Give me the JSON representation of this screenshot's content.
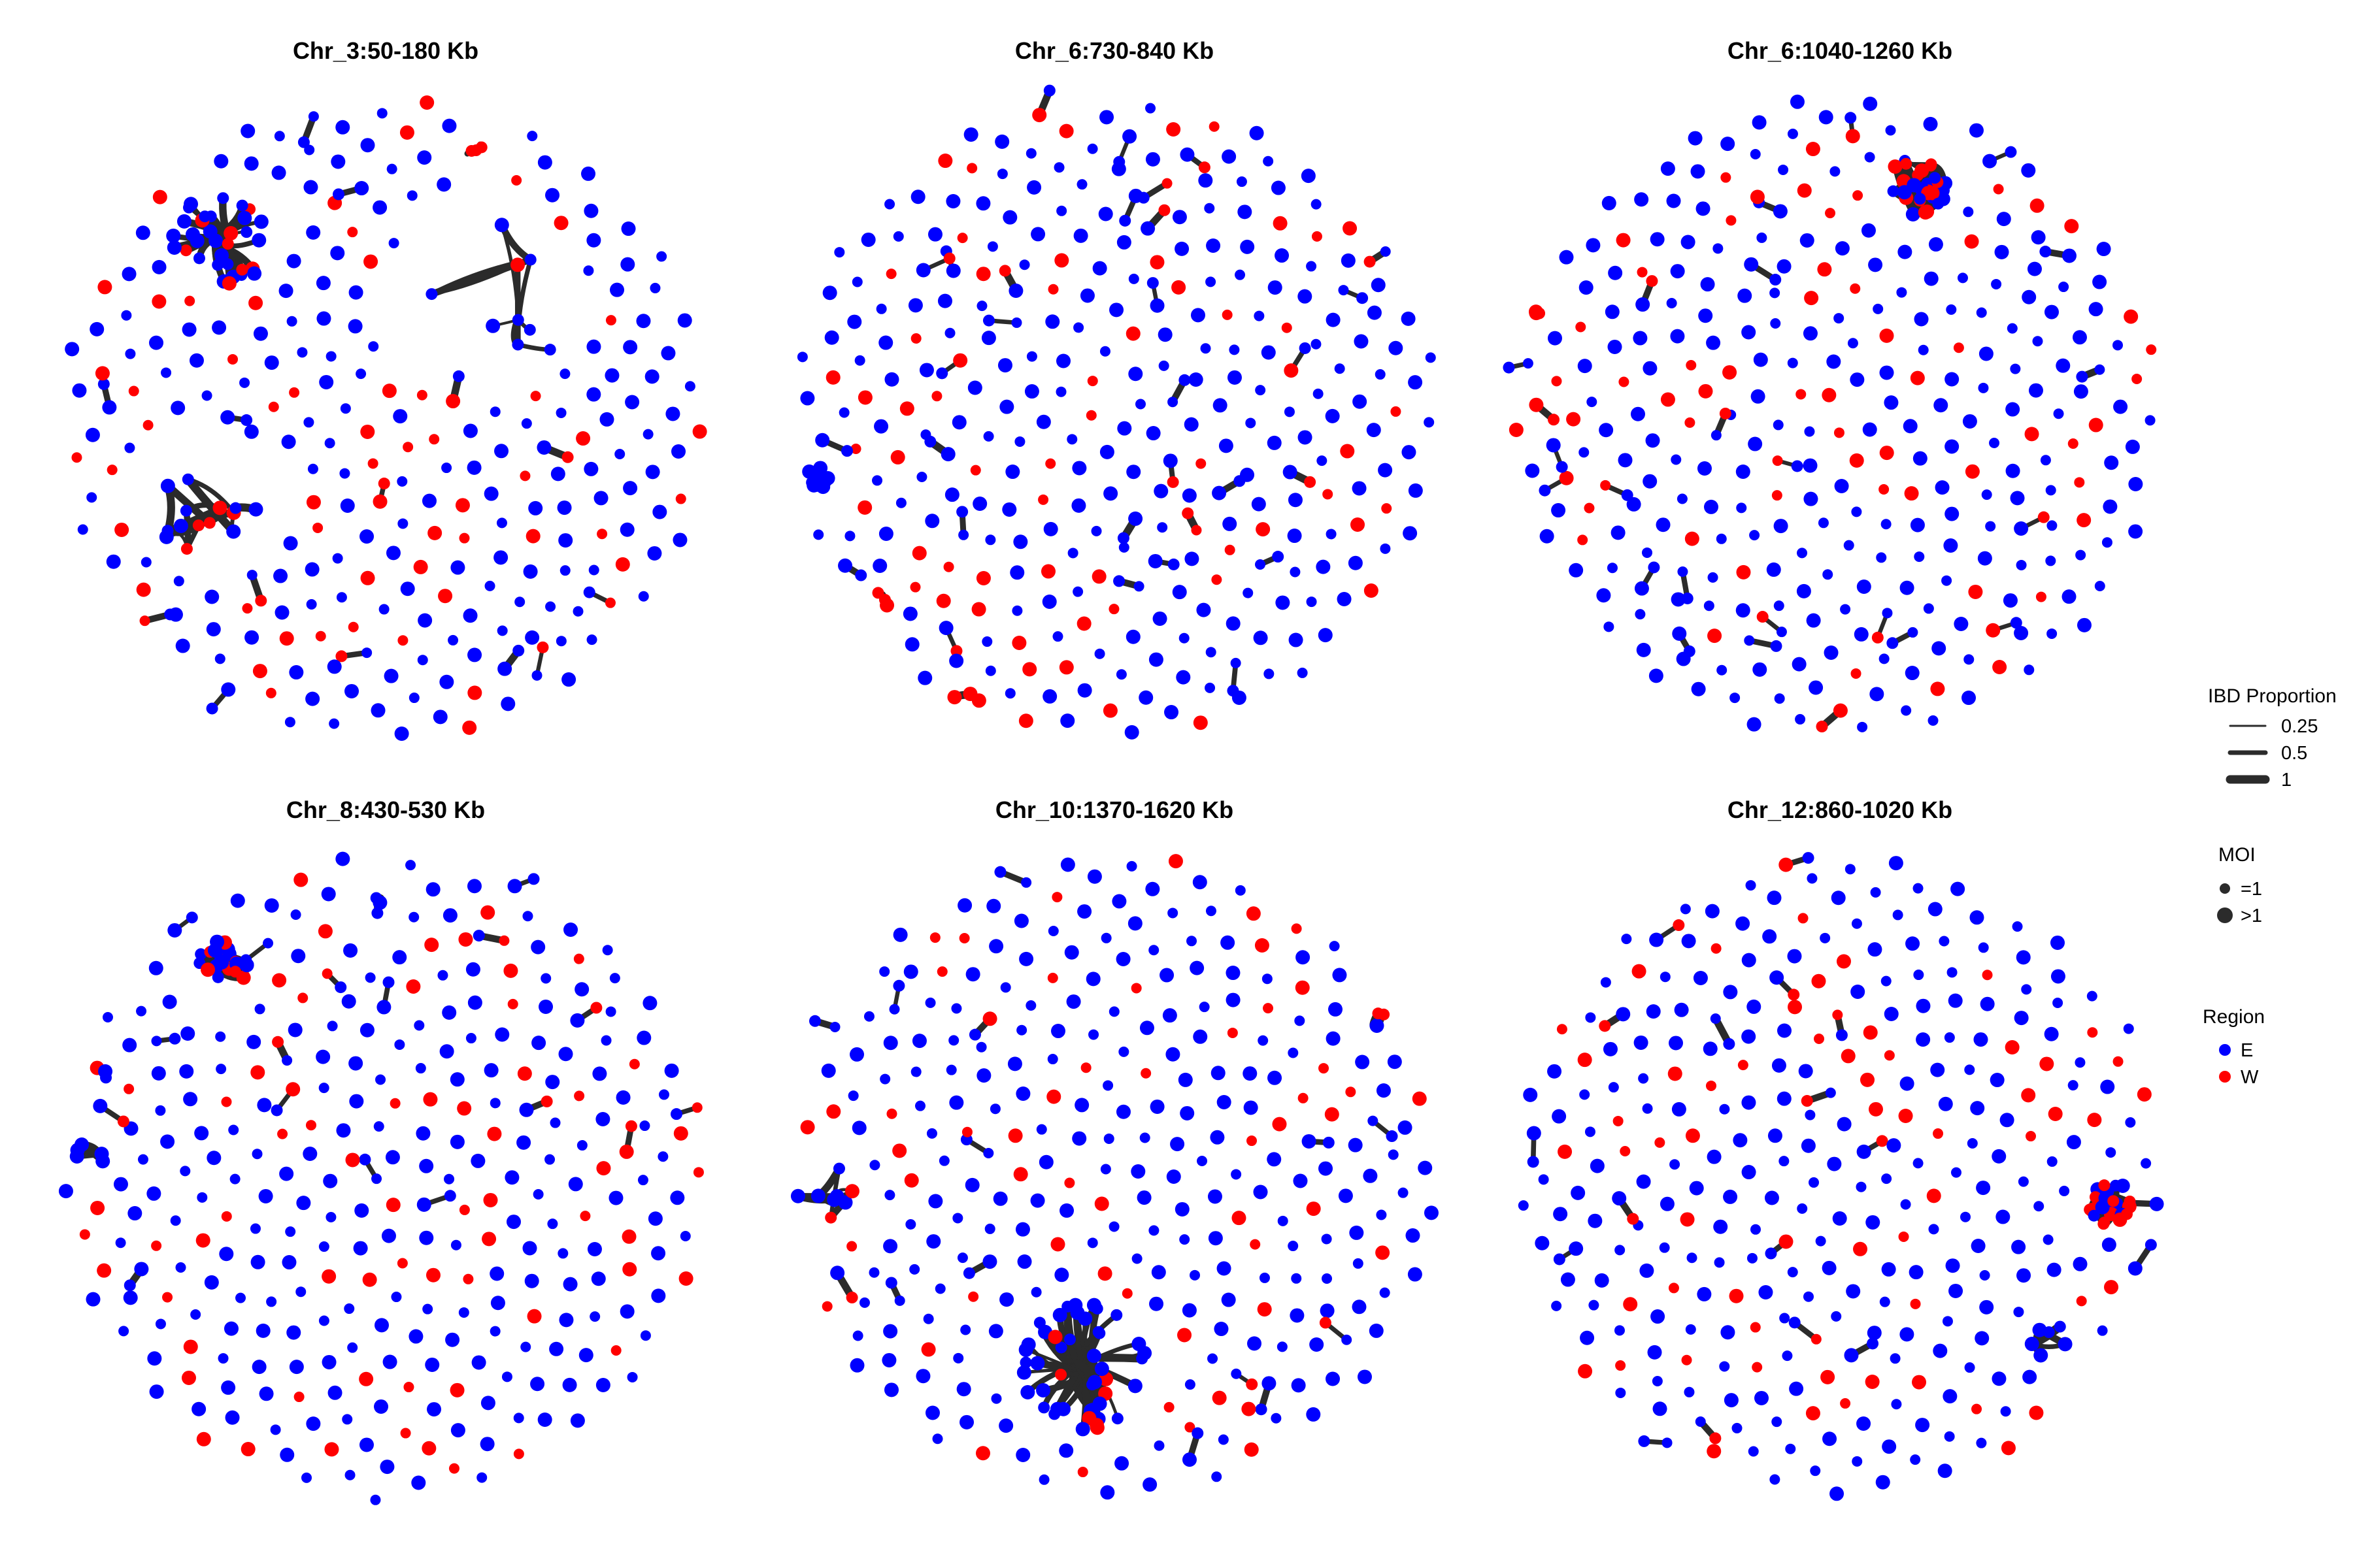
{
  "panels": [
    {
      "title": "Chr_3:50-180 Kb",
      "clusters": [
        {
          "dx": -0.5,
          "dy": -0.55,
          "n": 34,
          "spread": 0.15,
          "wfrac": 0.25,
          "hub": true
        },
        {
          "dx": -0.55,
          "dy": 0.25,
          "n": 14,
          "spread": 0.18,
          "wfrac": 0.35,
          "hub": false
        },
        {
          "dx": 0.3,
          "dy": -0.35,
          "n": 9,
          "spread": 0.25,
          "wfrac": 0.35,
          "hub": false
        },
        {
          "dx": 0.28,
          "dy": -0.8,
          "n": 3,
          "spread": 0.04,
          "wfrac": 0.9,
          "hub": false
        }
      ]
    },
    {
      "title": "Chr_6:730-840 Kb",
      "clusters": [
        {
          "dx": -0.9,
          "dy": 0.18,
          "n": 10,
          "spread": 0.04,
          "wfrac": 0.0,
          "hub": false
        },
        {
          "dx": -0.45,
          "dy": 0.85,
          "n": 3,
          "spread": 0.04,
          "wfrac": 0.9,
          "hub": false
        },
        {
          "dx": -0.72,
          "dy": 0.56,
          "n": 3,
          "spread": 0.04,
          "wfrac": 0.7,
          "hub": false
        }
      ]
    },
    {
      "title": "Chr_6:1040-1260 Kb",
      "clusters": [
        {
          "dx": 0.25,
          "dy": -0.72,
          "n": 30,
          "spread": 0.1,
          "wfrac": 0.5,
          "hub": false
        },
        {
          "dx": -0.91,
          "dy": -0.33,
          "n": 3,
          "spread": 0.03,
          "wfrac": 0.9,
          "hub": false
        }
      ]
    },
    {
      "title": "Chr_8:430-530 Kb",
      "clusters": [
        {
          "dx": -0.5,
          "dy": -0.65,
          "n": 22,
          "spread": 0.08,
          "wfrac": 0.3,
          "hub": false
        },
        {
          "dx": -0.9,
          "dy": -0.08,
          "n": 5,
          "spread": 0.05,
          "wfrac": 0.0,
          "hub": false
        },
        {
          "dx": -0.87,
          "dy": -0.32,
          "n": 3,
          "spread": 0.03,
          "wfrac": 0.3,
          "hub": false
        },
        {
          "dx": -0.05,
          "dy": -0.82,
          "n": 3,
          "spread": 0.04,
          "wfrac": 0.0,
          "hub": false
        }
      ]
    },
    {
      "title": "Chr_10:1370-1620 Kb",
      "clusters": [
        {
          "dx": -0.1,
          "dy": 0.58,
          "n": 46,
          "spread": 0.2,
          "wfrac": 0.2,
          "hub": true
        },
        {
          "dx": -0.88,
          "dy": 0.05,
          "n": 8,
          "spread": 0.1,
          "wfrac": 0.2,
          "hub": false
        },
        {
          "dx": 0.82,
          "dy": -0.48,
          "n": 3,
          "spread": 0.03,
          "wfrac": 0.9,
          "hub": false
        }
      ]
    },
    {
      "title": "Chr_12:860-1020 Kb",
      "clusters": [
        {
          "dx": 0.82,
          "dy": 0.08,
          "n": 26,
          "spread": 0.07,
          "wfrac": 0.6,
          "hub": false
        },
        {
          "dx": 0.66,
          "dy": 0.5,
          "n": 6,
          "spread": 0.08,
          "wfrac": 0.2,
          "hub": false
        }
      ]
    }
  ],
  "legend": {
    "ibd": {
      "title": "IBD Proportion",
      "items": [
        {
          "label": "0.25",
          "value": 0.25
        },
        {
          "label": "0.5",
          "value": 0.5
        },
        {
          "label": "1",
          "value": 1
        }
      ]
    },
    "moi": {
      "title": "MOI",
      "items": [
        {
          "label": "=1",
          "size": "small"
        },
        {
          "label": ">1",
          "size": "large"
        }
      ]
    },
    "region": {
      "title": "Region",
      "items": [
        {
          "label": "E",
          "color": "#0000FF"
        },
        {
          "label": "W",
          "color": "#FF0000"
        }
      ]
    }
  },
  "colors": {
    "E": "#0000FF",
    "W": "#FF0000",
    "edge": "#2b2b2b"
  }
}
